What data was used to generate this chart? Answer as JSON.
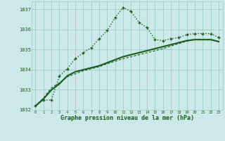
{
  "title": "Graphe pression niveau de la mer (hPa)",
  "bg_color": "#cce8e8",
  "grid_color": "#99cccc",
  "line_color": "#1a5c1a",
  "xlim": [
    -0.5,
    23.5
  ],
  "ylim": [
    1032,
    1037.4
  ],
  "x": [
    0,
    1,
    2,
    3,
    4,
    5,
    6,
    7,
    8,
    9,
    10,
    11,
    12,
    13,
    14,
    15,
    16,
    17,
    18,
    19,
    20,
    21,
    22,
    23
  ],
  "series1": [
    1032.2,
    1032.5,
    1032.5,
    1033.7,
    1034.05,
    1034.55,
    1034.85,
    1035.1,
    1035.55,
    1035.95,
    1036.6,
    1037.1,
    1036.9,
    1036.35,
    1036.1,
    1035.5,
    1035.45,
    1035.55,
    1035.6,
    1035.75,
    1035.8,
    1035.8,
    1035.8,
    1035.6
  ],
  "series2": [
    1032.2,
    1032.55,
    1033.0,
    1033.3,
    1033.7,
    1033.9,
    1034.0,
    1034.1,
    1034.2,
    1034.35,
    1034.5,
    1034.65,
    1034.75,
    1034.85,
    1034.95,
    1035.05,
    1035.15,
    1035.25,
    1035.35,
    1035.45,
    1035.5,
    1035.5,
    1035.5,
    1035.4
  ],
  "series3": [
    1032.2,
    1032.6,
    1033.1,
    1033.35,
    1033.65,
    1033.8,
    1033.95,
    1034.05,
    1034.15,
    1034.3,
    1034.42,
    1034.55,
    1034.65,
    1034.75,
    1034.85,
    1034.95,
    1035.05,
    1035.18,
    1035.3,
    1035.42,
    1035.5,
    1035.5,
    1035.5,
    1035.4
  ],
  "yticks": [
    1032,
    1033,
    1034,
    1035,
    1036,
    1037
  ],
  "xticks": [
    0,
    1,
    2,
    3,
    4,
    5,
    6,
    7,
    8,
    9,
    10,
    11,
    12,
    13,
    14,
    15,
    16,
    17,
    18,
    19,
    20,
    21,
    22,
    23
  ]
}
